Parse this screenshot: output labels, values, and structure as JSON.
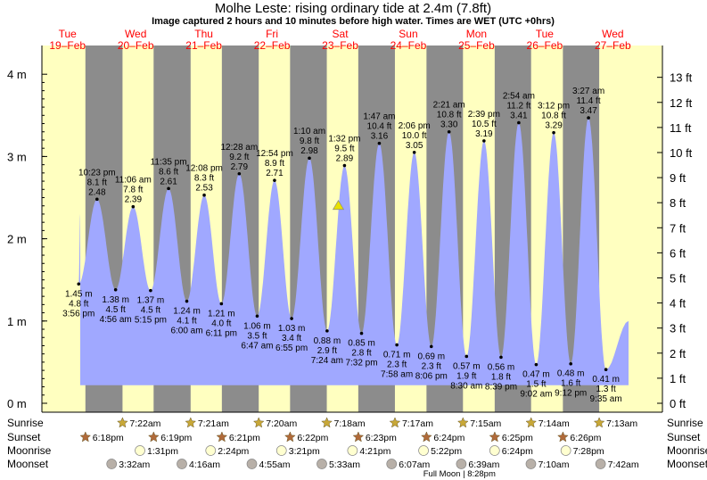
{
  "title": "Molhe Leste: rising  ordinary tide at 2.4m (7.8ft)",
  "subtitle": "Image captured 2 hours and 10 minutes before high water. Times are WET (UTC +0hrs)",
  "colors": {
    "day": "#ffffc0",
    "night": "#8c8c8c",
    "tide": "#a0a8ff",
    "date": "#ff0000",
    "current_marker": "#e8e000",
    "sun_star": "#c8a838",
    "set_star": "#b06a3a",
    "moonrise": "#ffffd0",
    "moonset": "#b8b0a8"
  },
  "chart_data": {
    "type": "area",
    "y_left_label_unit": "m",
    "y_left_ticks": [
      "0 m",
      "1 m",
      "2 m",
      "3 m",
      "4 m"
    ],
    "y_right_ticks": [
      "0 ft",
      "1 ft",
      "2 ft",
      "3 ft",
      "4 ft",
      "5 ft",
      "6 ft",
      "7 ft",
      "8 ft",
      "9 ft",
      "10 ft",
      "11 ft",
      "12 ft",
      "13 ft"
    ],
    "ylim_m": [
      -0.1,
      4.3
    ],
    "days": [
      {
        "dow": "Tue",
        "date": "19–Feb",
        "day": 0
      },
      {
        "dow": "Wed",
        "date": "20–Feb",
        "day": 1
      },
      {
        "dow": "Thu",
        "date": "21–Feb",
        "day": 2
      },
      {
        "dow": "Fri",
        "date": "22–Feb",
        "day": 3
      },
      {
        "dow": "Sat",
        "date": "23–Feb",
        "day": 4
      },
      {
        "dow": "Sun",
        "date": "24–Feb",
        "day": 5
      },
      {
        "dow": "Mon",
        "date": "25–Feb",
        "day": 6
      },
      {
        "dow": "Tue",
        "date": "26–Feb",
        "day": 7
      },
      {
        "dow": "Wed",
        "date": "27–Feb",
        "day": 8
      }
    ],
    "tides": [
      {
        "time": "3:56 pm",
        "day": 0,
        "h": 1.45,
        "ft": "4.8 ft",
        "m": "1.45 m",
        "type": "low"
      },
      {
        "time": "10:23 pm",
        "day": 0,
        "h": 2.48,
        "ft": "8.1 ft",
        "m": "2.48",
        "type": "high"
      },
      {
        "time": "4:56 am",
        "day": 1,
        "h": 1.38,
        "ft": "4.5 ft",
        "m": "1.38 m",
        "type": "low"
      },
      {
        "time": "11:06 am",
        "day": 1,
        "h": 2.39,
        "ft": "7.8 ft",
        "m": "2.39",
        "type": "high"
      },
      {
        "time": "5:15 pm",
        "day": 1,
        "h": 1.37,
        "ft": "4.5 ft",
        "m": "1.37 m",
        "type": "low"
      },
      {
        "time": "11:35 pm",
        "day": 1,
        "h": 2.61,
        "ft": "8.6 ft",
        "m": "2.61",
        "type": "high"
      },
      {
        "time": "6:00 am",
        "day": 2,
        "h": 1.24,
        "ft": "4.1 ft",
        "m": "1.24 m",
        "type": "low"
      },
      {
        "time": "12:08 pm",
        "day": 2,
        "h": 2.53,
        "ft": "8.3 ft",
        "m": "2.53",
        "type": "high"
      },
      {
        "time": "6:11 pm",
        "day": 2,
        "h": 1.21,
        "ft": "4.0 ft",
        "m": "1.21 m",
        "type": "low"
      },
      {
        "time": "12:28 am",
        "day": 3,
        "h": 2.79,
        "ft": "9.2 ft",
        "m": "2.79",
        "type": "high"
      },
      {
        "time": "6:47 am",
        "day": 3,
        "h": 1.06,
        "ft": "3.5 ft",
        "m": "1.06 m",
        "type": "low"
      },
      {
        "time": "12:54 pm",
        "day": 3,
        "h": 2.71,
        "ft": "8.9 ft",
        "m": "2.71",
        "type": "high"
      },
      {
        "time": "6:55 pm",
        "day": 3,
        "h": 1.03,
        "ft": "3.4 ft",
        "m": "1.03 m",
        "type": "low"
      },
      {
        "time": "1:10 am",
        "day": 4,
        "h": 2.98,
        "ft": "9.8 ft",
        "m": "2.98",
        "type": "high"
      },
      {
        "time": "7:24 am",
        "day": 4,
        "h": 0.88,
        "ft": "2.9 ft",
        "m": "0.88 m",
        "type": "low"
      },
      {
        "time": "1:32 pm",
        "day": 4,
        "h": 2.89,
        "ft": "9.5 ft",
        "m": "2.89",
        "type": "high"
      },
      {
        "time": "7:32 pm",
        "day": 4,
        "h": 0.85,
        "ft": "2.8 ft",
        "m": "0.85 m",
        "type": "low"
      },
      {
        "time": "1:47 am",
        "day": 5,
        "h": 3.16,
        "ft": "10.4 ft",
        "m": "3.16",
        "type": "high"
      },
      {
        "time": "7:58 am",
        "day": 5,
        "h": 0.71,
        "ft": "2.3 ft",
        "m": "0.71 m",
        "type": "low"
      },
      {
        "time": "2:06 pm",
        "day": 5,
        "h": 3.05,
        "ft": "10.0 ft",
        "m": "3.05",
        "type": "high"
      },
      {
        "time": "8:06 pm",
        "day": 5,
        "h": 0.69,
        "ft": "2.3 ft",
        "m": "0.69 m",
        "type": "low"
      },
      {
        "time": "2:21 am",
        "day": 6,
        "h": 3.3,
        "ft": "10.8 ft",
        "m": "3.30",
        "type": "high"
      },
      {
        "time": "8:30 am",
        "day": 6,
        "h": 0.57,
        "ft": "1.9 ft",
        "m": "0.57 m",
        "type": "low"
      },
      {
        "time": "2:39 pm",
        "day": 6,
        "h": 3.19,
        "ft": "10.5 ft",
        "m": "3.19",
        "type": "high"
      },
      {
        "time": "8:39 pm",
        "day": 6,
        "h": 0.56,
        "ft": "1.8 ft",
        "m": "0.56 m",
        "type": "low"
      },
      {
        "time": "2:54 am",
        "day": 7,
        "h": 3.41,
        "ft": "11.2 ft",
        "m": "3.41",
        "type": "high"
      },
      {
        "time": "9:02 am",
        "day": 7,
        "h": 0.47,
        "ft": "1.5 ft",
        "m": "0.47 m",
        "type": "low"
      },
      {
        "time": "3:12 pm",
        "day": 7,
        "h": 3.29,
        "ft": "10.8 ft",
        "m": "3.29",
        "type": "high"
      },
      {
        "time": "9:12 pm",
        "day": 7,
        "h": 0.48,
        "ft": "1.6 ft",
        "m": "0.48 m",
        "type": "low"
      },
      {
        "time": "3:27 am",
        "day": 8,
        "h": 3.47,
        "ft": "11.4 ft",
        "m": "3.47",
        "type": "high"
      },
      {
        "time": "9:35 am",
        "day": 8,
        "h": 0.41,
        "ft": "1.3 ft",
        "m": "0.41 m",
        "type": "low"
      }
    ],
    "current": {
      "time": "11:22 am",
      "day": 4,
      "h": 2.4
    },
    "sunrise": [
      {
        "day": 1,
        "time": "7:22am"
      },
      {
        "day": 2,
        "time": "7:21am"
      },
      {
        "day": 3,
        "time": "7:20am"
      },
      {
        "day": 4,
        "time": "7:18am"
      },
      {
        "day": 5,
        "time": "7:17am"
      },
      {
        "day": 6,
        "time": "7:15am"
      },
      {
        "day": 7,
        "time": "7:14am"
      },
      {
        "day": 8,
        "time": "7:13am"
      }
    ],
    "sunset": [
      {
        "day": 0,
        "time": "6:18pm"
      },
      {
        "day": 1,
        "time": "6:19pm"
      },
      {
        "day": 2,
        "time": "6:21pm"
      },
      {
        "day": 3,
        "time": "6:22pm"
      },
      {
        "day": 4,
        "time": "6:23pm"
      },
      {
        "day": 5,
        "time": "6:24pm"
      },
      {
        "day": 6,
        "time": "6:25pm"
      },
      {
        "day": 7,
        "time": "6:26pm"
      }
    ],
    "moonrise": [
      {
        "day": 1,
        "time": "1:31pm"
      },
      {
        "day": 2,
        "time": "2:24pm"
      },
      {
        "day": 3,
        "time": "3:21pm"
      },
      {
        "day": 4,
        "time": "4:21pm"
      },
      {
        "day": 5,
        "time": "5:22pm"
      },
      {
        "day": 6,
        "time": "6:24pm"
      },
      {
        "day": 7,
        "time": "7:28pm"
      }
    ],
    "moonset": [
      {
        "day": 1,
        "time": "3:32am"
      },
      {
        "day": 2,
        "time": "4:16am"
      },
      {
        "day": 3,
        "time": "4:55am"
      },
      {
        "day": 4,
        "time": "5:33am"
      },
      {
        "day": 5,
        "time": "6:07am"
      },
      {
        "day": 6,
        "time": "6:39am"
      },
      {
        "day": 7,
        "time": "7:10am"
      },
      {
        "day": 8,
        "time": "7:42am"
      }
    ],
    "row_labels": {
      "sunrise": "Sunrise",
      "sunset": "Sunset",
      "moonrise": "Moonrise",
      "moonset": "Moonset"
    },
    "full_moon": "Full Moon | 8:28pm",
    "full_moon_day": 6
  }
}
